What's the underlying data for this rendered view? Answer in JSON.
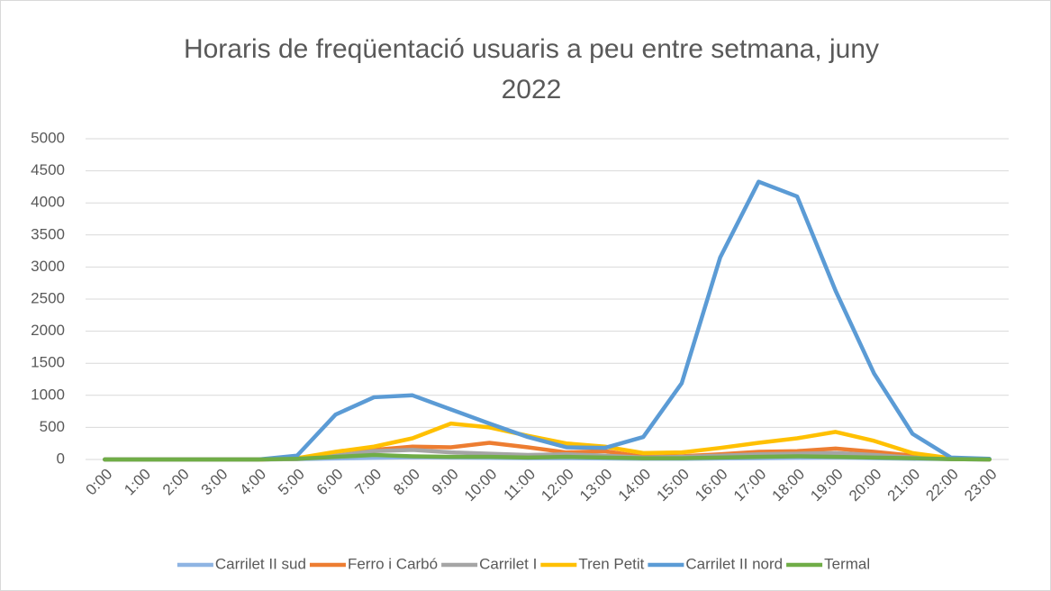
{
  "chart_data": {
    "type": "line",
    "title": "Horaris de freqüentació usuaris a peu entre setmana, juny 2022",
    "categories": [
      "0:00",
      "1:00",
      "2:00",
      "3:00",
      "4:00",
      "5:00",
      "6:00",
      "7:00",
      "8:00",
      "9:00",
      "10:00",
      "11:00",
      "12:00",
      "13:00",
      "14:00",
      "15:00",
      "16:00",
      "17:00",
      "18:00",
      "19:00",
      "20:00",
      "21:00",
      "22:00",
      "23:00"
    ],
    "ylim": [
      0,
      5000
    ],
    "yticks": [
      0,
      500,
      1000,
      1500,
      2000,
      2500,
      3000,
      3500,
      4000,
      4500,
      5000
    ],
    "grid": true,
    "legend": "bottom",
    "series": [
      {
        "name": "Carrilet II sud",
        "color": "#8eb4e3",
        "values": [
          0,
          0,
          0,
          0,
          0,
          5,
          15,
          25,
          35,
          30,
          25,
          20,
          20,
          15,
          10,
          10,
          15,
          20,
          25,
          30,
          20,
          10,
          5,
          0
        ]
      },
      {
        "name": "Ferro i Carbó",
        "color": "#ed7d31",
        "values": [
          0,
          0,
          0,
          0,
          0,
          10,
          50,
          150,
          200,
          190,
          260,
          190,
          110,
          130,
          40,
          50,
          80,
          120,
          130,
          170,
          120,
          60,
          10,
          0
        ]
      },
      {
        "name": "Carrilet I",
        "color": "#a5a5a5",
        "values": [
          0,
          0,
          0,
          0,
          0,
          5,
          60,
          130,
          150,
          110,
          90,
          70,
          80,
          60,
          30,
          40,
          60,
          80,
          90,
          100,
          70,
          30,
          5,
          0
        ]
      },
      {
        "name": "Tren Petit",
        "color": "#ffc000",
        "values": [
          0,
          0,
          0,
          0,
          0,
          20,
          120,
          200,
          330,
          560,
          500,
          370,
          250,
          200,
          100,
          110,
          180,
          260,
          330,
          430,
          290,
          100,
          20,
          5
        ]
      },
      {
        "name": "Carrilet II nord",
        "color": "#5b9bd5",
        "values": [
          0,
          0,
          0,
          0,
          0,
          60,
          700,
          970,
          1000,
          780,
          560,
          350,
          190,
          180,
          350,
          1190,
          3150,
          4330,
          4100,
          2630,
          1340,
          400,
          30,
          10
        ]
      },
      {
        "name": "Termal",
        "color": "#70ad47",
        "values": [
          0,
          0,
          0,
          0,
          0,
          10,
          40,
          70,
          50,
          40,
          40,
          30,
          40,
          30,
          20,
          20,
          30,
          40,
          50,
          40,
          30,
          20,
          5,
          0
        ]
      }
    ]
  }
}
